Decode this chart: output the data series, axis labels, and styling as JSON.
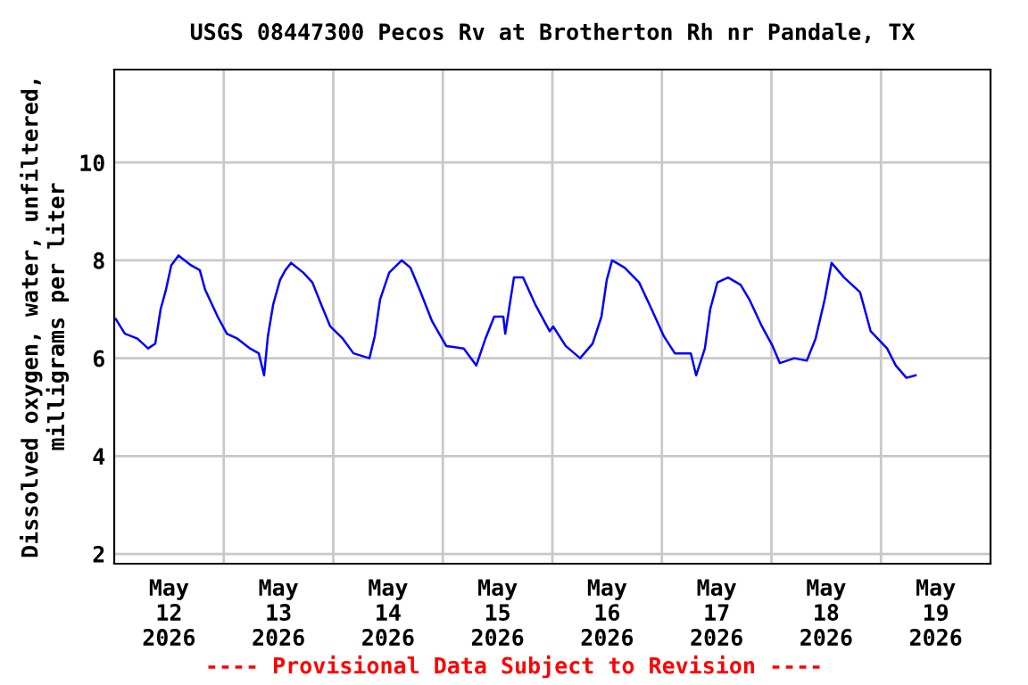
{
  "chart_data": {
    "type": "line",
    "title": "USGS 08447300 Pecos Rv at Brotherton Rh nr Pandale, TX",
    "ylabel": "Dissolved oxygen, water, unfiltered,\nmilligrams per liter",
    "annotations": [
      "---- Provisional Data Subject to Revision ----"
    ],
    "x": [
      "2026-05-12T00:20",
      "2026-05-12T02:20",
      "2026-05-12T05:05",
      "2026-05-12T07:25",
      "2026-05-12T09:00",
      "2026-05-12T10:10",
      "2026-05-12T11:20",
      "2026-05-12T12:30",
      "2026-05-12T14:05",
      "2026-05-12T16:50",
      "2026-05-12T18:45",
      "2026-05-12T19:55",
      "2026-05-12T22:40",
      "2026-05-13T00:40",
      "2026-05-13T03:00",
      "2026-05-13T05:45",
      "2026-05-13T07:40",
      "2026-05-13T08:50",
      "2026-05-13T09:40",
      "2026-05-13T10:50",
      "2026-05-13T12:20",
      "2026-05-13T13:30",
      "2026-05-13T14:45",
      "2026-05-13T17:25",
      "2026-05-13T19:25",
      "2026-05-13T21:20",
      "2026-05-13T23:20",
      "2026-05-14T02:05",
      "2026-05-14T04:25",
      "2026-05-14T07:55",
      "2026-05-14T09:05",
      "2026-05-14T10:15",
      "2026-05-14T12:15",
      "2026-05-14T15:00",
      "2026-05-14T16:55",
      "2026-05-14T18:55",
      "2026-05-14T21:40",
      "2026-05-15T00:45",
      "2026-05-15T04:35",
      "2026-05-15T07:20",
      "2026-05-15T09:20",
      "2026-05-15T11:15",
      "2026-05-15T13:15",
      "2026-05-15T13:40",
      "2026-05-15T15:35",
      "2026-05-15T17:35",
      "2026-05-15T20:15",
      "2026-05-15T23:25",
      "2026-05-16T00:10",
      "2026-05-16T02:55",
      "2026-05-16T06:05",
      "2026-05-16T08:50",
      "2026-05-16T10:45",
      "2026-05-16T11:55",
      "2026-05-16T13:05",
      "2026-05-16T15:50",
      "2026-05-16T19:00",
      "2026-05-16T21:45",
      "2026-05-17T00:25",
      "2026-05-17T02:50",
      "2026-05-17T06:20",
      "2026-05-17T07:30",
      "2026-05-17T09:25",
      "2026-05-17T10:35",
      "2026-05-17T12:10",
      "2026-05-17T14:30",
      "2026-05-17T17:15",
      "2026-05-17T19:10",
      "2026-05-17T21:55",
      "2026-05-18T00:15",
      "2026-05-18T01:50",
      "2026-05-18T05:00",
      "2026-05-18T07:45",
      "2026-05-18T09:40",
      "2026-05-18T11:40",
      "2026-05-18T13:10",
      "2026-05-18T15:55",
      "2026-05-18T19:25",
      "2026-05-18T21:45",
      "2026-05-19T01:20",
      "2026-05-19T03:15",
      "2026-05-19T05:35",
      "2026-05-19T07:35"
    ],
    "series": [
      {
        "color": "#0000ff",
        "values": [
          6.8,
          6.5,
          6.4,
          6.2,
          6.3,
          7.0,
          7.4,
          7.9,
          8.1,
          7.9,
          7.8,
          7.4,
          6.85,
          6.5,
          6.4,
          6.2,
          6.1,
          5.65,
          6.45,
          7.1,
          7.6,
          7.8,
          7.95,
          7.75,
          7.55,
          7.1,
          6.65,
          6.4,
          6.1,
          6.0,
          6.45,
          7.2,
          7.75,
          8.0,
          7.85,
          7.4,
          6.75,
          6.25,
          6.2,
          5.85,
          6.4,
          6.85,
          6.85,
          6.5,
          7.65,
          7.65,
          7.1,
          6.55,
          6.65,
          6.25,
          6.0,
          6.3,
          6.85,
          7.6,
          8.0,
          7.85,
          7.55,
          7.0,
          6.45,
          6.1,
          6.1,
          5.65,
          6.2,
          7.0,
          7.55,
          7.65,
          7.5,
          7.2,
          6.65,
          6.25,
          5.9,
          6.0,
          5.95,
          6.4,
          7.2,
          7.95,
          7.65,
          7.35,
          6.55,
          6.2,
          5.85,
          5.6,
          5.65
        ]
      }
    ],
    "xlim": [
      "2026-05-12T00:00",
      "2026-05-20T00:00"
    ],
    "xticks": [
      {
        "value": "2026-05-12T12:00",
        "label": "May\n12\n2026"
      },
      {
        "value": "2026-05-13T12:00",
        "label": "May\n13\n2026"
      },
      {
        "value": "2026-05-14T12:00",
        "label": "May\n14\n2026"
      },
      {
        "value": "2026-05-15T12:00",
        "label": "May\n15\n2026"
      },
      {
        "value": "2026-05-16T12:00",
        "label": "May\n16\n2026"
      },
      {
        "value": "2026-05-17T12:00",
        "label": "May\n17\n2026"
      },
      {
        "value": "2026-05-18T12:00",
        "label": "May\n18\n2026"
      },
      {
        "value": "2026-05-19T12:00",
        "label": "May\n19\n2026"
      },
      {
        "value": "2026-05-13T00:00",
        "label": null
      },
      {
        "value": "2026-05-14T00:00",
        "label": null
      },
      {
        "value": "2026-05-15T00:00",
        "label": null
      },
      {
        "value": "2026-05-16T00:00",
        "label": null
      },
      {
        "value": "2026-05-17T00:00",
        "label": null
      },
      {
        "value": "2026-05-18T00:00",
        "label": null
      },
      {
        "value": "2026-05-19T00:00",
        "label": null
      }
    ],
    "ylim": [
      1.8,
      11.9
    ],
    "yticks": [
      2,
      4,
      6,
      8,
      10
    ],
    "grid": true,
    "marker": "none",
    "line_style": "solid"
  }
}
